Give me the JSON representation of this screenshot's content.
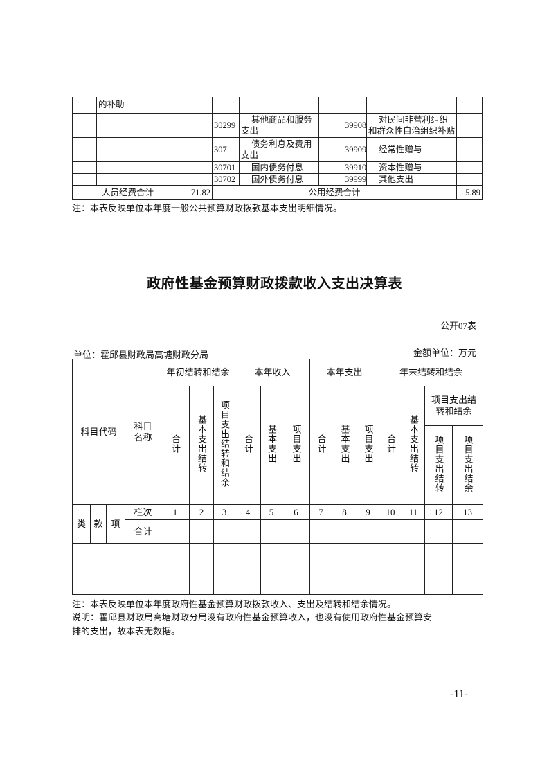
{
  "table1": {
    "rows": [
      [
        "",
        "的补助",
        "",
        "",
        "",
        "",
        "",
        "",
        ""
      ],
      [
        "",
        "",
        "",
        "30299",
        "其他商品和服务支出",
        "",
        "39908",
        "对民间非营利组织和群众性自治组织补贴",
        ""
      ],
      [
        "",
        "",
        "",
        "307",
        "债务利息及费用支出",
        "",
        "39909",
        "经常性赠与",
        ""
      ],
      [
        "",
        "",
        "",
        "30701",
        "国内债务付息",
        "",
        "39910",
        "资本性赠与",
        ""
      ],
      [
        "",
        "",
        "",
        "30702",
        "国外债务付息",
        "",
        "39999",
        "其他支出",
        ""
      ]
    ],
    "personnel_total_label": "人员经费合计",
    "personnel_total_value": "71.82",
    "public_total_label": "公用经费合计",
    "public_total_value": "5.89",
    "note": "注：本表反映单位本年度一般公共预算财政拨款基本支出明细情况。"
  },
  "title": "政府性基金预算财政拨款收入支出决算表",
  "table_no": "公开07表",
  "unit": "单位：霍邱县财政局高塘财政分局",
  "amount_unit": "金额单位：万元",
  "table2": {
    "code_header": "科目代码",
    "name_header": "科目名称",
    "groups": [
      "年初结转和结余",
      "本年收入",
      "本年支出",
      "年末结转和结余"
    ],
    "sub": {
      "total": "合计",
      "basic_carry": "基本支出结转",
      "project_carry_balance": "项目支出结转和结余",
      "basic_exp": "基本支出",
      "project_exp": "项目支出",
      "project_carry": "项目支出结转",
      "project_balance": "项目支出结余"
    },
    "lei": "类",
    "kuan": "款",
    "xiang": "项",
    "column_no_label": "栏次",
    "column_numbers": [
      "1",
      "2",
      "3",
      "4",
      "5",
      "6",
      "7",
      "8",
      "9",
      "10",
      "11",
      "12",
      "13"
    ],
    "total_row_label": "合计"
  },
  "notes": [
    "注：本表反映单位本年度政府性基金预算财政拨款收入、支出及结转和结余情况。",
    "说明：霍邱县财政局高塘财政分局没有政府性基金预算收入，也没有使用政府性基金预算安",
    "排的支出，故本表无数据。"
  ],
  "page_number": "-11-"
}
